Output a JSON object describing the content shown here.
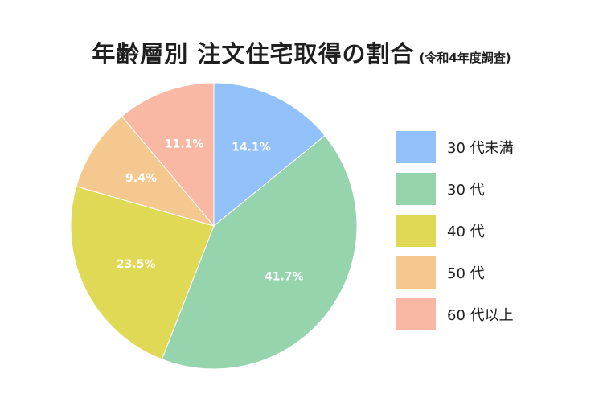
{
  "chart_data": {
    "type": "pie",
    "title": "年齢層別 注文住宅取得の割合",
    "subtitle": "(令和4年度調査)",
    "slices": [
      {
        "label": "30 代未満",
        "value": 14.1,
        "display": "14.1%",
        "color": "#92c1fa"
      },
      {
        "label": "30 代",
        "value": 41.7,
        "display": "41.7%",
        "color": "#95d4ad"
      },
      {
        "label": "40 代",
        "value": 23.5,
        "display": "23.5%",
        "color": "#e0d955"
      },
      {
        "label": "50 代",
        "value": 9.4,
        "display": "9.4%",
        "color": "#f4c88f"
      },
      {
        "label": "60 代以上",
        "value": 11.1,
        "display": "11.1%",
        "color": "#f9b8a4"
      }
    ],
    "legend_position": "right"
  }
}
